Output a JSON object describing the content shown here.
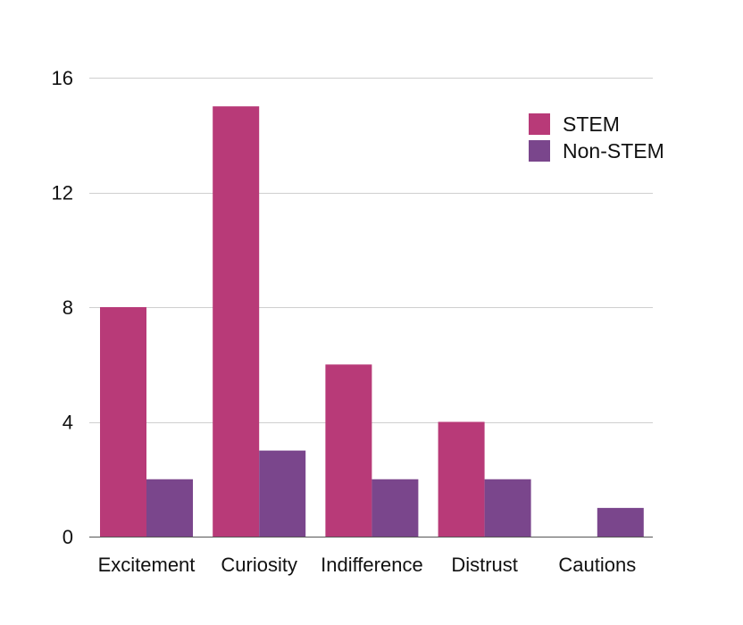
{
  "chart_data": {
    "type": "bar",
    "categories": [
      "Excitement",
      "Curiosity",
      "Indifference",
      "Distrust",
      "Cautions"
    ],
    "series": [
      {
        "name": "STEM",
        "values": [
          8,
          15,
          6,
          4,
          0
        ],
        "color": "#B83A78"
      },
      {
        "name": "Non-STEM",
        "values": [
          2,
          3,
          2,
          2,
          1
        ],
        "color": "#7A468C"
      }
    ],
    "ylim": [
      0,
      16
    ],
    "yticks": [
      0,
      4,
      8,
      12,
      16
    ],
    "grid": true,
    "legend_position": "top-right"
  }
}
